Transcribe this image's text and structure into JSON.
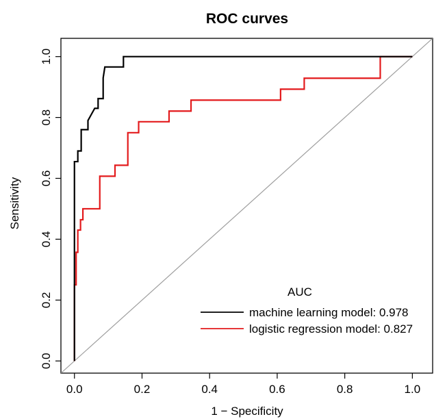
{
  "chart_data": {
    "type": "line",
    "title": "ROC curves",
    "xlabel": "1 − Specificity",
    "ylabel": "Sensitivity",
    "xlim": [
      -0.04,
      1.06
    ],
    "ylim": [
      -0.04,
      1.06
    ],
    "xticks": [
      0.0,
      0.2,
      0.4,
      0.6,
      0.8,
      1.0
    ],
    "xtick_labels": [
      "0.0",
      "0.2",
      "0.4",
      "0.6",
      "0.8",
      "1.0"
    ],
    "yticks": [
      0.0,
      0.2,
      0.4,
      0.6,
      0.8,
      1.0
    ],
    "ytick_labels": [
      "0.0",
      "0.2",
      "0.4",
      "0.6",
      "0.8",
      "1.0"
    ],
    "grid": false,
    "legend": {
      "title": "AUC",
      "placement": "bottom-right"
    },
    "reference_line": {
      "color": "#9e9e9e",
      "from": [
        0,
        0
      ],
      "to": [
        1,
        1
      ]
    },
    "series": [
      {
        "name": "machine learning model: 0.978",
        "color": "#000000",
        "x": [
          0.0,
          0.0,
          0.01,
          0.01,
          0.02,
          0.02,
          0.04,
          0.04,
          0.05,
          0.06,
          0.07,
          0.07,
          0.085,
          0.085,
          0.09,
          0.09,
          0.145,
          0.145,
          1.0
        ],
        "y": [
          0.0,
          0.655,
          0.655,
          0.69,
          0.69,
          0.76,
          0.76,
          0.79,
          0.81,
          0.83,
          0.83,
          0.862,
          0.862,
          0.93,
          0.966,
          0.966,
          0.966,
          1.0,
          1.0
        ]
      },
      {
        "name": "logistic regression model: 0.827",
        "color": "#e31a1c",
        "x": [
          0.0,
          0.0,
          0.005,
          0.005,
          0.01,
          0.01,
          0.018,
          0.018,
          0.025,
          0.025,
          0.035,
          0.035,
          0.075,
          0.075,
          0.12,
          0.12,
          0.158,
          0.158,
          0.19,
          0.19,
          0.28,
          0.28,
          0.345,
          0.345,
          0.61,
          0.61,
          0.68,
          0.68,
          0.905,
          0.905,
          1.0
        ],
        "y": [
          0.0,
          0.25,
          0.25,
          0.357,
          0.357,
          0.43,
          0.43,
          0.464,
          0.464,
          0.5,
          0.5,
          0.5,
          0.5,
          0.607,
          0.607,
          0.643,
          0.643,
          0.75,
          0.75,
          0.786,
          0.786,
          0.821,
          0.821,
          0.857,
          0.857,
          0.893,
          0.893,
          0.929,
          0.929,
          1.0,
          1.0
        ]
      }
    ]
  }
}
